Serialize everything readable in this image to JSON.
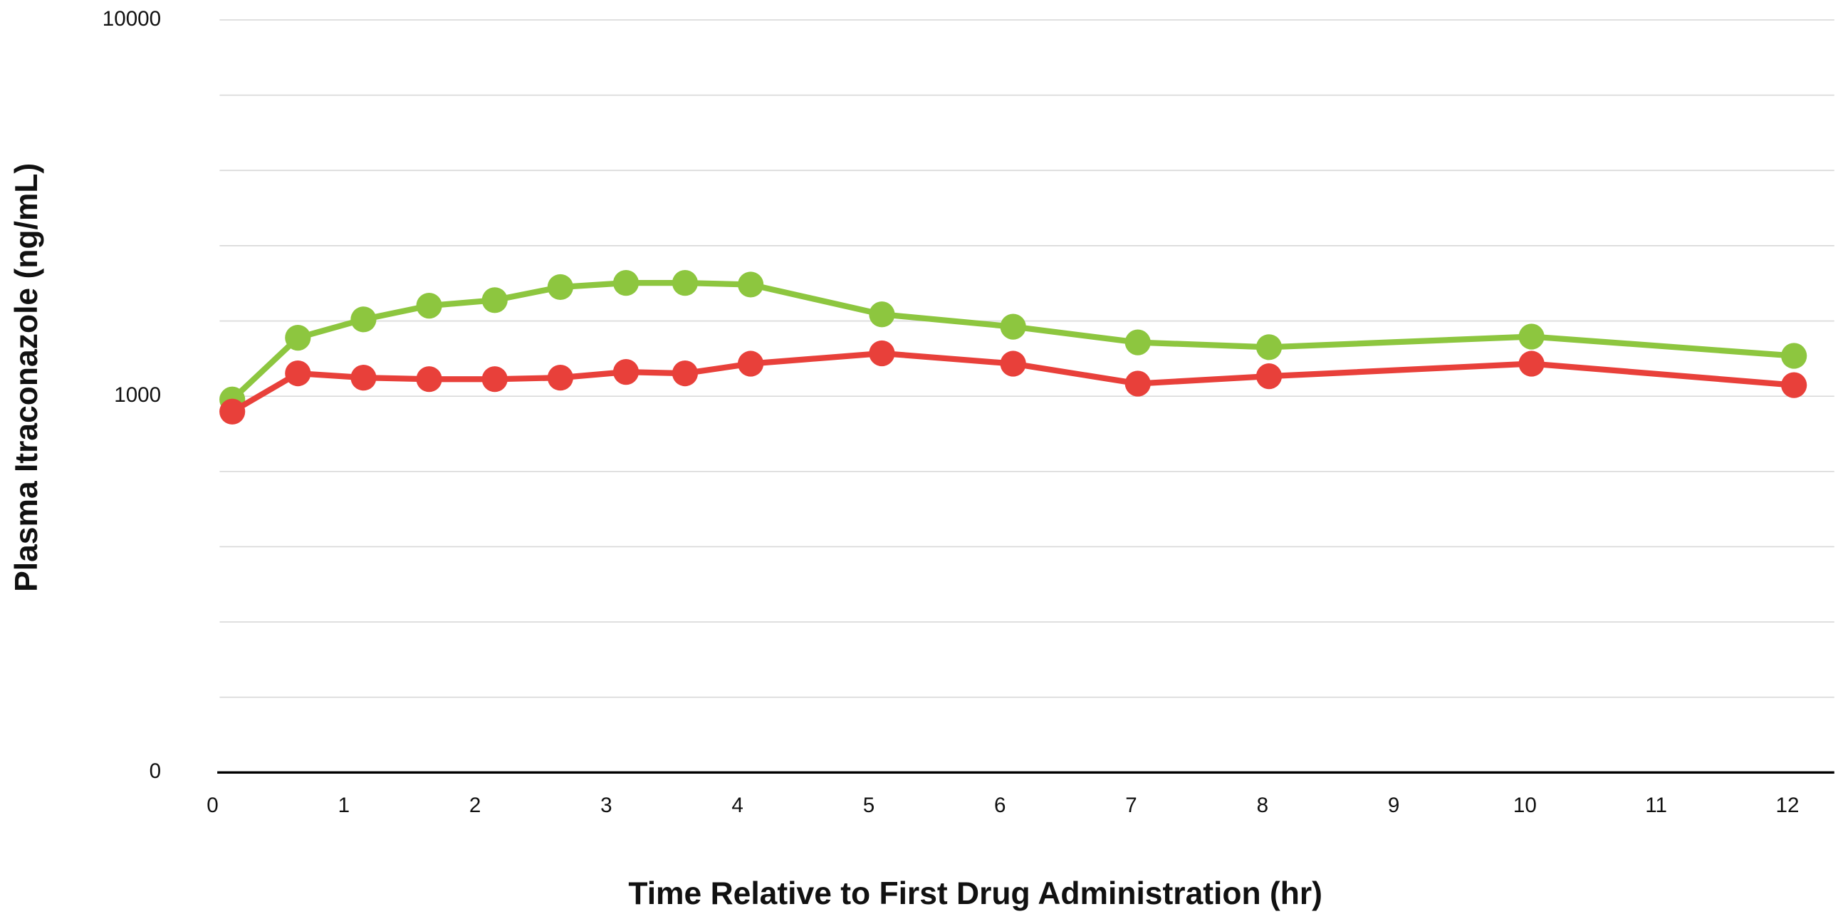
{
  "chart_data": {
    "type": "line",
    "x_label": "Time Relative to First Drug Administration (hr)",
    "y_label": "Plasma Itraconazole (ng/mL)",
    "y_scale": "log",
    "grid": true,
    "xlim": [
      0,
      12.3
    ],
    "xticks": [
      0,
      1,
      2,
      3,
      4,
      5,
      6,
      7,
      8,
      9,
      10,
      11,
      12
    ],
    "ylim": [
      100,
      10000
    ],
    "yticks": [
      {
        "value": 100,
        "label": "0"
      },
      1000,
      10000
    ],
    "x": [
      0.15,
      0.65,
      1.15,
      1.65,
      2.15,
      2.65,
      3.15,
      3.6,
      4.1,
      5.1,
      6.1,
      7.05,
      8.05,
      10.05,
      12.05
    ],
    "series": [
      {
        "color": "#8dc63f",
        "values": [
          980,
          1430,
          1600,
          1740,
          1800,
          1950,
          2000,
          2000,
          1980,
          1650,
          1530,
          1390,
          1350,
          1440,
          1280
        ]
      },
      {
        "color": "#e8403a",
        "values": [
          910,
          1150,
          1120,
          1110,
          1110,
          1120,
          1160,
          1150,
          1220,
          1300,
          1220,
          1080,
          1130,
          1220,
          1070
        ]
      }
    ]
  }
}
